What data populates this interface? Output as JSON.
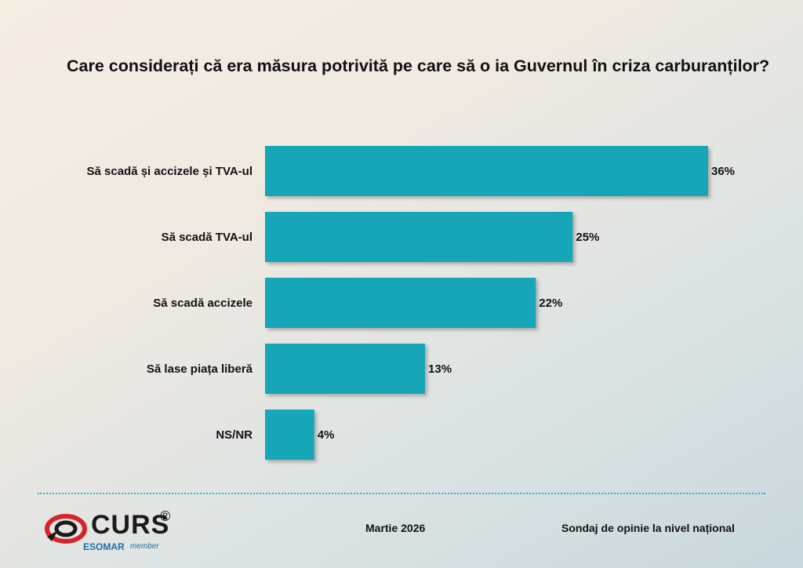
{
  "title": "Care considerați că era măsura potrivită pe care să o ia Guvernul în criza carburanților?",
  "chart_data": {
    "type": "bar",
    "orientation": "horizontal",
    "categories": [
      "Să scadă și accizele și TVA-ul",
      "Să scadă TVA-ul",
      "Să scadă accizele",
      "Să lase piața liberă",
      "NS/NR"
    ],
    "values": [
      36,
      25,
      22,
      13,
      4
    ],
    "value_labels": [
      "36%",
      "25%",
      "22%",
      "13%",
      "4%"
    ],
    "bar_color": "#15a6b8",
    "xlim": [
      0,
      36
    ]
  },
  "footer": {
    "date": "Martie 2026",
    "tagline": "Sondaj de opinie la nivel național",
    "logo_text": "CURS",
    "logo_reg": "®",
    "logo_esomar": "ESOMAR",
    "logo_member": "member"
  },
  "colors": {
    "accent": "#15a6b8",
    "divider": "#3ab0c2",
    "logo_red": "#d7232a"
  }
}
